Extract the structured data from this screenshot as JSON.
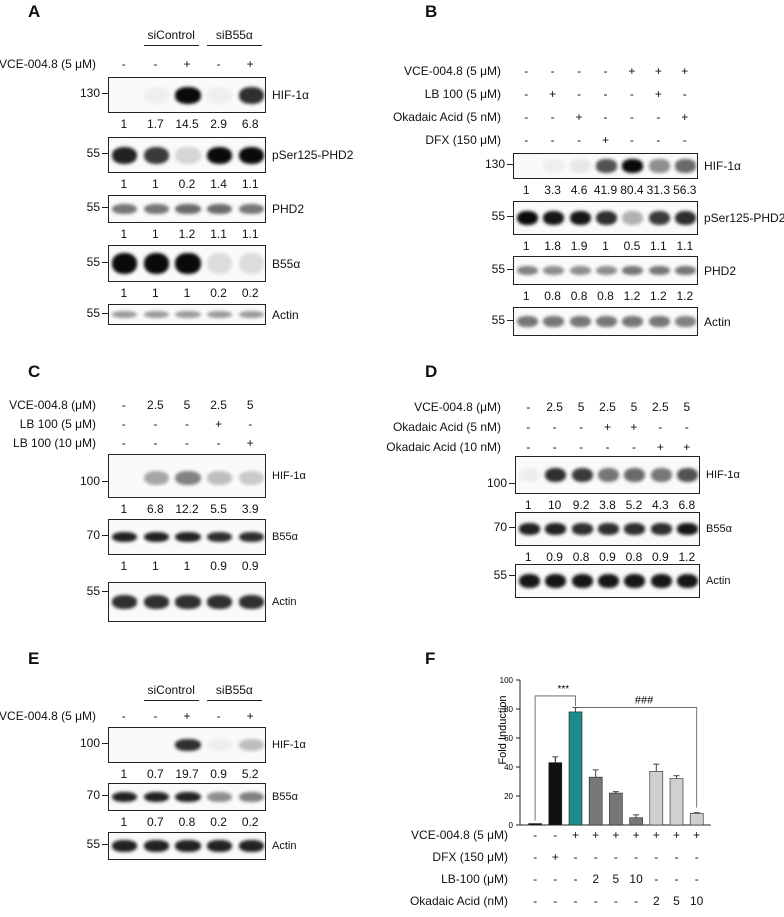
{
  "panel_labels": {
    "A": "A",
    "B": "B",
    "C": "C",
    "D": "D",
    "E": "E",
    "F": "F"
  },
  "panel_a": {
    "groups": [
      "siControl",
      "siB55α"
    ],
    "row_label": "VCE-004.8 (5 μM)",
    "treat": [
      "-",
      "-",
      "+",
      "-",
      "+"
    ],
    "blots": [
      {
        "name": "HIF-1α",
        "mw": "130",
        "quant": [
          "1",
          "1.7",
          "14.5",
          "2.9",
          "6.8"
        ]
      },
      {
        "name": "pSer125-PHD2",
        "mw": "55",
        "quant": [
          "1",
          "1",
          "0.2",
          "1.4",
          "1.1"
        ]
      },
      {
        "name": "PHD2",
        "mw": "55",
        "quant": [
          "1",
          "1",
          "1.2",
          "1.1",
          "1.1"
        ]
      },
      {
        "name": "B55α",
        "mw": "55",
        "quant": [
          "1",
          "1",
          "1",
          "0.2",
          "0.2"
        ]
      },
      {
        "name": "Actin",
        "mw": "55",
        "quant": []
      }
    ]
  },
  "panel_b": {
    "rows": [
      {
        "label": "VCE-004.8 (5 μM)",
        "vals": [
          "-",
          "-",
          "-",
          "-",
          "+",
          "+",
          "+"
        ]
      },
      {
        "label": "LB 100 (5 μM)",
        "vals": [
          "-",
          "+",
          "-",
          "-",
          "-",
          "+",
          "-"
        ]
      },
      {
        "label": "Okadaic Acid (5 nM)",
        "vals": [
          "-",
          "-",
          "+",
          "-",
          "-",
          "-",
          "+"
        ]
      },
      {
        "label": "DFX (150 μM)",
        "vals": [
          "-",
          "-",
          "-",
          "+",
          "-",
          "-",
          "-"
        ]
      }
    ],
    "blots": [
      {
        "name": "HIF-1α",
        "mw": "130",
        "quant": [
          "1",
          "3.3",
          "4.6",
          "41.9",
          "80.4",
          "31.3",
          "56.3"
        ]
      },
      {
        "name": "pSer125-PHD2",
        "mw": "55",
        "quant": [
          "1",
          "1.8",
          "1.9",
          "1",
          "0.5",
          "1.1",
          "1.1"
        ]
      },
      {
        "name": "PHD2",
        "mw": "55",
        "quant": [
          "1",
          "0.8",
          "0.8",
          "0.8",
          "1.2",
          "1.2",
          "1.2"
        ]
      },
      {
        "name": "Actin",
        "mw": "55",
        "quant": []
      }
    ]
  },
  "panel_c": {
    "rows": [
      {
        "label": "VCE-004.8 (μM)",
        "vals": [
          "-",
          "2.5",
          "5",
          "2.5",
          "5"
        ]
      },
      {
        "label": "LB 100 (5 μM)",
        "vals": [
          "-",
          "-",
          "-",
          "+",
          "-"
        ]
      },
      {
        "label": "LB 100 (10 μM)",
        "vals": [
          "-",
          "-",
          "-",
          "-",
          "+"
        ]
      }
    ],
    "blots": [
      {
        "name": "HIF-1α",
        "mw": "100",
        "quant": [
          "1",
          "6.8",
          "12.2",
          "5.5",
          "3.9"
        ]
      },
      {
        "name": "B55α",
        "mw": "70",
        "quant": [
          "1",
          "1",
          "1",
          "0.9",
          "0.9"
        ]
      },
      {
        "name": "Actin",
        "mw": "55",
        "quant": []
      }
    ]
  },
  "panel_d": {
    "rows": [
      {
        "label": "VCE-004.8 (μM)",
        "vals": [
          "-",
          "2.5",
          "5",
          "2.5",
          "5",
          "2.5",
          "5"
        ]
      },
      {
        "label": "Okadaic Acid (5 nM)",
        "vals": [
          "-",
          "-",
          "-",
          "+",
          "+",
          "-",
          "-"
        ]
      },
      {
        "label": "Okadaic Acid (10 nM)",
        "vals": [
          "-",
          "-",
          "-",
          "-",
          "-",
          "+",
          "+"
        ]
      }
    ],
    "blots": [
      {
        "name": "HIF-1α",
        "mw": "100",
        "quant": [
          "1",
          "10",
          "9.2",
          "3.8",
          "5.2",
          "4.3",
          "6.8"
        ]
      },
      {
        "name": "B55α",
        "mw": "70",
        "quant": [
          "1",
          "0.9",
          "0.8",
          "0.9",
          "0.8",
          "0.9",
          "1.2"
        ]
      },
      {
        "name": "Actin",
        "mw": "55",
        "quant": []
      }
    ]
  },
  "panel_e": {
    "groups": [
      "siControl",
      "siB55α"
    ],
    "row_label": "VCE-004.8 (5 μM)",
    "treat": [
      "-",
      "-",
      "+",
      "-",
      "+"
    ],
    "blots": [
      {
        "name": "HIF-1α",
        "mw": "100",
        "quant": [
          "1",
          "0.7",
          "19.7",
          "0.9",
          "5.2"
        ]
      },
      {
        "name": "B55α",
        "mw": "70",
        "quant": [
          "1",
          "0.7",
          "0.8",
          "0.2",
          "0.2"
        ]
      },
      {
        "name": "Actin",
        "mw": "55",
        "quant": []
      }
    ]
  },
  "chart_data": {
    "type": "bar",
    "ylabel": "Fold Induction",
    "ylim": [
      0,
      100
    ],
    "yticks": [
      "0",
      "20",
      "40",
      "60",
      "80",
      "100"
    ],
    "values": [
      1,
      43,
      78,
      33,
      22,
      5,
      37,
      32,
      8
    ],
    "errors": [
      0,
      4,
      3,
      5,
      1,
      2,
      5,
      2,
      0.5
    ],
    "colors": [
      "#111111",
      "#111111",
      "#1f8a8a",
      "#777777",
      "#777777",
      "#777777",
      "#d0d0d0",
      "#d0d0d0",
      "#d0d0d0"
    ],
    "significance": [
      "***",
      "###"
    ],
    "table_rows": [
      {
        "label": "VCE-004.8 (5 μM)",
        "vals": [
          "-",
          "-",
          "+",
          "+",
          "+",
          "+",
          "+",
          "+",
          "+"
        ]
      },
      {
        "label": "DFX (150 μM)",
        "vals": [
          "-",
          "+",
          "-",
          "-",
          "-",
          "-",
          "-",
          "-",
          "-"
        ]
      },
      {
        "label": "LB-100 (μM)",
        "vals": [
          "-",
          "-",
          "-",
          "2",
          "5",
          "10",
          "-",
          "-",
          "-"
        ]
      },
      {
        "label": "Okadaic Acid (nM)",
        "vals": [
          "-",
          "-",
          "-",
          "-",
          "-",
          "-",
          "2",
          "5",
          "10"
        ]
      }
    ]
  }
}
